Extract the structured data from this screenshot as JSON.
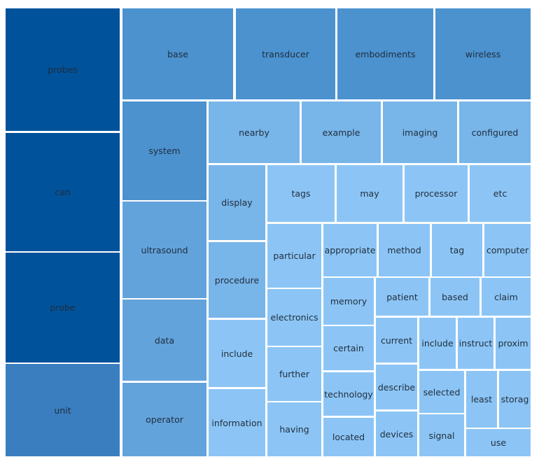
{
  "chart_data": {
    "type": "treemap",
    "title": "",
    "levels": {
      "0": "#00529b",
      "1": "#3a7ec0",
      "2": "#4b92cf",
      "3": "#63a3dc",
      "4": "#78b5e9",
      "5": "#8cc5f5"
    },
    "items": [
      {
        "name": "probes",
        "value": 33.0,
        "level": 0
      },
      {
        "name": "can",
        "value": 32.0,
        "level": 0
      },
      {
        "name": "probe",
        "value": 30.0,
        "level": 0
      },
      {
        "name": "unit",
        "value": 25.0,
        "level": 1
      },
      {
        "name": "base",
        "value": 24.0,
        "level": 2
      },
      {
        "name": "transducer",
        "value": 23.0,
        "level": 2
      },
      {
        "name": "embodiments",
        "value": 22.0,
        "level": 2
      },
      {
        "name": "wireless",
        "value": 22.0,
        "level": 2
      },
      {
        "name": "system",
        "value": 18.0,
        "level": 2
      },
      {
        "name": "ultrasound",
        "value": 18.0,
        "level": 3
      },
      {
        "name": "data",
        "value": 15.0,
        "level": 3
      },
      {
        "name": "operator",
        "value": 14.0,
        "level": 3
      },
      {
        "name": "nearby",
        "value": 12.0,
        "level": 4
      },
      {
        "name": "example",
        "value": 11.0,
        "level": 4
      },
      {
        "name": "imaging",
        "value": 10.0,
        "level": 4
      },
      {
        "name": "configured",
        "value": 10.0,
        "level": 4
      },
      {
        "name": "display",
        "value": 9.0,
        "level": 4
      },
      {
        "name": "procedure",
        "value": 9.0,
        "level": 4
      },
      {
        "name": "include",
        "value": 8.0,
        "level": 5
      },
      {
        "name": "information",
        "value": 8.0,
        "level": 5
      },
      {
        "name": "tags",
        "value": 8.0,
        "level": 5
      },
      {
        "name": "may",
        "value": 7.5,
        "level": 5
      },
      {
        "name": "processor",
        "value": 7.0,
        "level": 5
      },
      {
        "name": "etc",
        "value": 7.0,
        "level": 5
      },
      {
        "name": "particular",
        "value": 7.0,
        "level": 5
      },
      {
        "name": "electronics",
        "value": 6.5,
        "level": 5
      },
      {
        "name": "further",
        "value": 6.0,
        "level": 5
      },
      {
        "name": "having",
        "value": 6.0,
        "level": 5
      },
      {
        "name": "appropriate",
        "value": 6.0,
        "level": 5
      },
      {
        "name": "method",
        "value": 6.0,
        "level": 5
      },
      {
        "name": "tag",
        "value": 5.5,
        "level": 5
      },
      {
        "name": "computer",
        "value": 5.5,
        "level": 5
      },
      {
        "name": "memory",
        "value": 5.5,
        "level": 5
      },
      {
        "name": "patient",
        "value": 5.0,
        "level": 5
      },
      {
        "name": "based",
        "value": 4.5,
        "level": 5
      },
      {
        "name": "claim",
        "value": 4.5,
        "level": 5
      },
      {
        "name": "certain",
        "value": 5.0,
        "level": 5
      },
      {
        "name": "current",
        "value": 4.5,
        "level": 5
      },
      {
        "name": "include",
        "value": 4.0,
        "level": 5
      },
      {
        "name": "instruct",
        "value": 4.0,
        "level": 5
      },
      {
        "name": "proxim",
        "value": 4.0,
        "level": 5
      },
      {
        "name": "technology",
        "value": 5.0,
        "level": 5
      },
      {
        "name": "describe",
        "value": 4.5,
        "level": 5
      },
      {
        "name": "selected",
        "value": 4.0,
        "level": 5
      },
      {
        "name": "least",
        "value": 3.5,
        "level": 5
      },
      {
        "name": "storag",
        "value": 3.5,
        "level": 5
      },
      {
        "name": "located",
        "value": 5.0,
        "level": 5
      },
      {
        "name": "devices",
        "value": 4.5,
        "level": 5
      },
      {
        "name": "signal",
        "value": 4.0,
        "level": 5
      },
      {
        "name": "use",
        "value": 3.5,
        "level": 5
      }
    ]
  }
}
